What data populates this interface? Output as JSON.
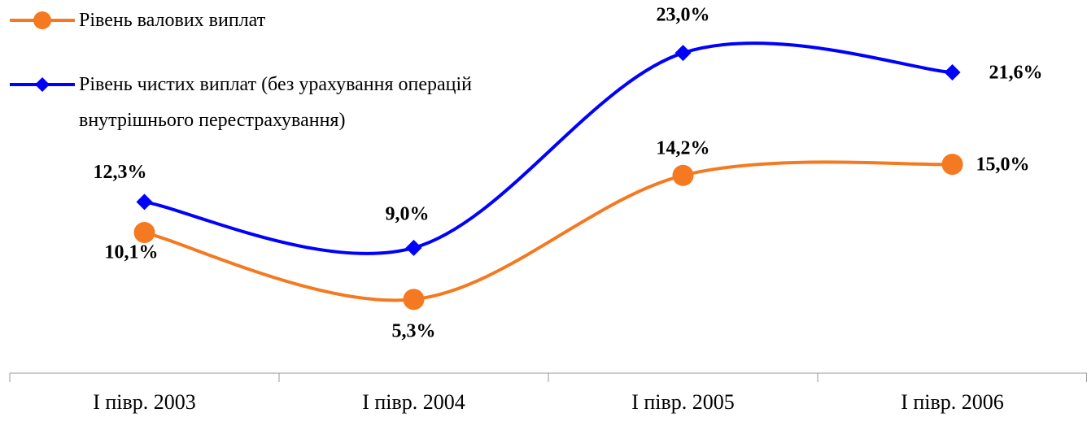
{
  "chart_data": {
    "type": "line",
    "categories": [
      "I півр. 2003",
      "I півр. 2004",
      "I півр. 2005",
      "I півр. 2006"
    ],
    "series": [
      {
        "name": "Рівень валових виплат",
        "color": "#f47920",
        "marker": "circle",
        "values": [
          10.1,
          5.3,
          14.2,
          15.0
        ],
        "value_labels": [
          "10,1%",
          "5,3%",
          "14,2%",
          "15,0%"
        ]
      },
      {
        "name": "Рівень чистих виплат (без урахування операцій внутрішнього перестрахування)",
        "color": "#0000ff",
        "marker": "diamond",
        "values": [
          12.3,
          9.0,
          23.0,
          21.6
        ],
        "value_labels": [
          "12,3%",
          "9,0%",
          "23,0%",
          "21,6%"
        ]
      }
    ],
    "ylim": [
      0,
      26.8
    ],
    "smooth": true
  }
}
